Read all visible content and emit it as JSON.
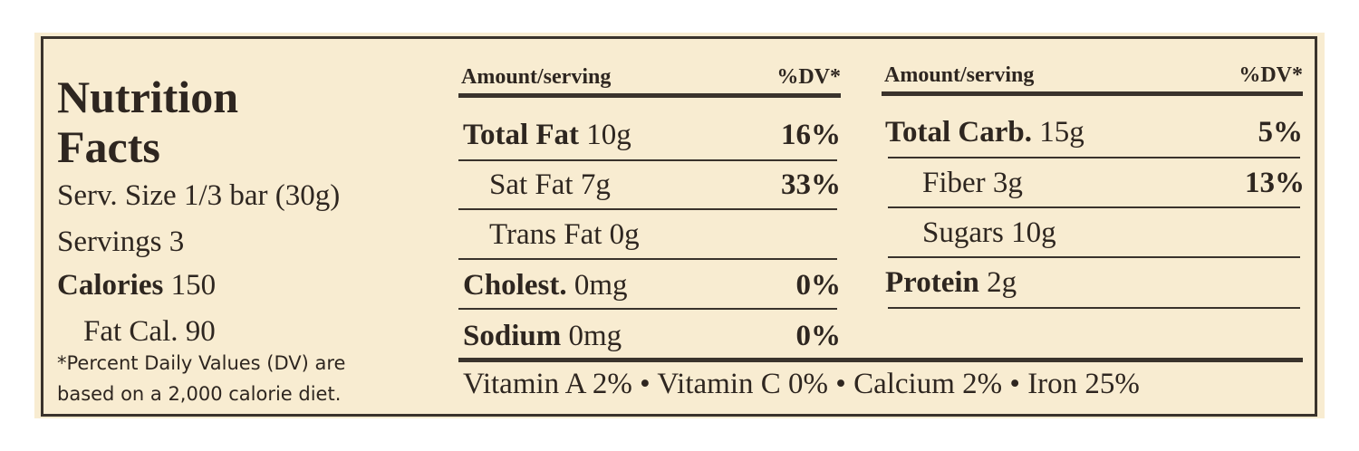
{
  "title": [
    "Nutrition",
    "Facts"
  ],
  "info": [
    {
      "label": "Serv. Size",
      "value": "1/3 bar (30g)"
    },
    {
      "label": "Servings",
      "value": "3"
    },
    {
      "label": "Calories",
      "value": "150"
    },
    {
      "label": "Fat Cal.",
      "value": "90"
    }
  ],
  "footnote": [
    "*Percent Daily Values (DV) are",
    "based on a 2,000 calorie diet."
  ],
  "columns": [
    {
      "amount_header": "Amount/serving",
      "dv_header": "%DV*",
      "rows": [
        {
          "name": "Total Fat",
          "amount": "10g",
          "dv": "16%"
        },
        {
          "name": "Sat Fat",
          "amount": "7g",
          "dv": "33%"
        },
        {
          "name": "Trans Fat",
          "amount": "0g"
        },
        {
          "name": "Cholest.",
          "amount": "0mg",
          "dv": "0%"
        },
        {
          "name": "Sodium",
          "amount": "0mg",
          "dv": "0%"
        }
      ]
    },
    {
      "amount_header": "Amount/serving",
      "dv_header": "%DV*",
      "rows": [
        {
          "name": "Total Carb.",
          "amount": "15g",
          "dv": "5%"
        },
        {
          "name": "Fiber",
          "amount": "3g",
          "dv": "13%"
        },
        {
          "name": "Sugars",
          "amount": "10g"
        },
        {
          "name": "Protein",
          "amount": "2g"
        }
      ]
    }
  ],
  "vitamins": [
    "Vitamin A 2%",
    "Vitamin C 0%",
    "Calcium 2%",
    "Iron 25%"
  ]
}
